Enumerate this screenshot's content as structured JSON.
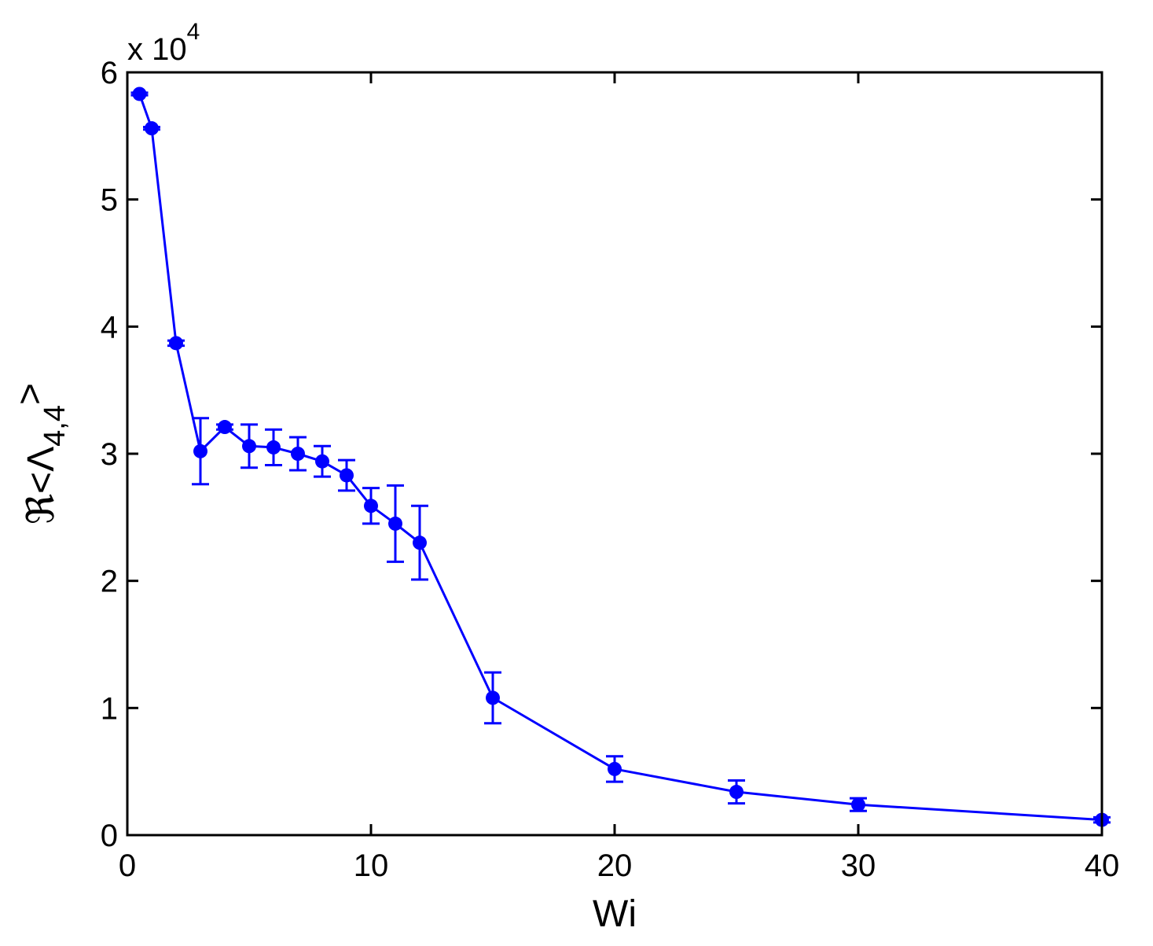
{
  "chart_data": {
    "type": "line",
    "xlabel": "Wi",
    "ylabel": {
      "prefix": "ℜ<Λ",
      "subscript": "4,4",
      "suffix": ">"
    },
    "y_multiplier": {
      "base": "x 10",
      "exponent": "4"
    },
    "xlim": [
      0,
      40
    ],
    "ylim": [
      0,
      6
    ],
    "xticks": [
      0,
      10,
      20,
      30,
      40
    ],
    "yticks": [
      0,
      1,
      2,
      3,
      4,
      5,
      6
    ],
    "grid": false,
    "color": "#0000ff",
    "series": [
      {
        "x": [
          0.5,
          1,
          2,
          3,
          4,
          5,
          6,
          7,
          8,
          9,
          10,
          11,
          12,
          15,
          20,
          25,
          30,
          40
        ],
        "y": [
          5.83,
          5.56,
          3.87,
          3.02,
          3.21,
          3.06,
          3.05,
          3.0,
          2.94,
          2.83,
          2.59,
          2.45,
          2.3,
          1.08,
          0.52,
          0.34,
          0.24,
          0.12
        ],
        "error": [
          0.01,
          0.01,
          0.02,
          0.26,
          0.02,
          0.17,
          0.14,
          0.13,
          0.12,
          0.12,
          0.14,
          0.3,
          0.29,
          0.2,
          0.1,
          0.09,
          0.05,
          0.02
        ]
      }
    ]
  }
}
